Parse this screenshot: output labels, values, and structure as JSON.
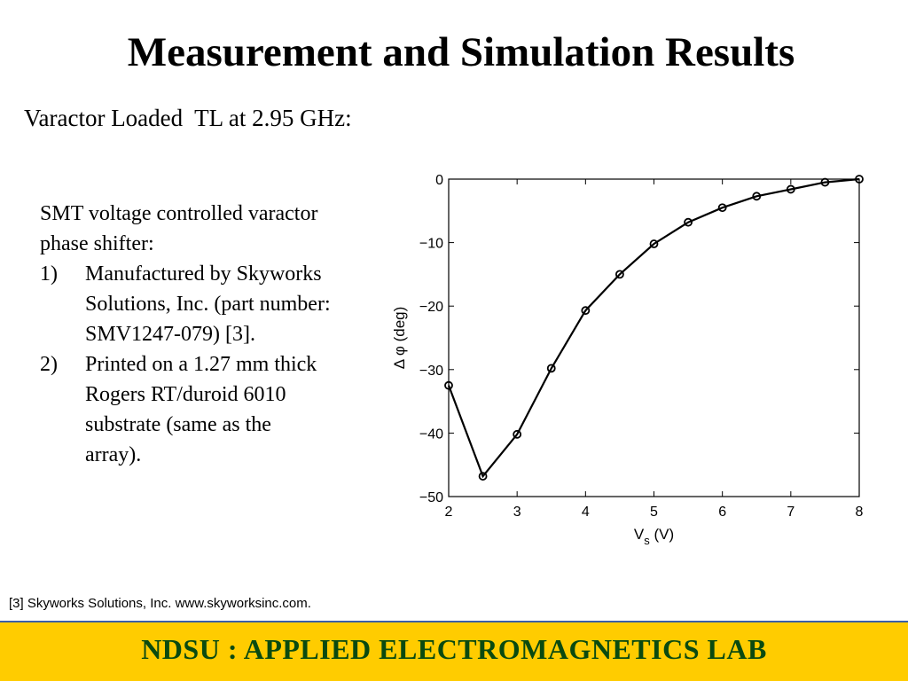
{
  "slide": {
    "title": "Measurement and Simulation Results",
    "subtitle": "Varactor Loaded  TL at 2.95 GHz:",
    "description": {
      "intro_line1": "SMT voltage controlled varactor",
      "intro_line2": "phase shifter:",
      "items": [
        {
          "num": "1)",
          "line1": "Manufactured by Skyworks",
          "line2": "Solutions, Inc. (part number:",
          "line3": "SMV1247-079) [3]."
        },
        {
          "num": "2)",
          "line1": "Printed on a 1.27 mm thick",
          "line2": "Rogers RT/duroid 6010",
          "line3": "substrate (same as the",
          "line4": "array)."
        }
      ]
    },
    "reference": "[3] Skyworks Solutions, Inc. www.skyworksinc.com.",
    "footer": "NDSU : APPLIED ELECTROMAGNETICS LAB"
  },
  "colors": {
    "footer_bg": "#ffcc00",
    "footer_text": "#0a4a10",
    "footer_border": "#3a5fa8"
  },
  "chart_data": {
    "type": "line",
    "x": [
      2,
      2.5,
      3,
      3.5,
      4,
      4.5,
      5,
      5.5,
      6,
      6.5,
      7,
      7.5,
      8
    ],
    "series": [
      {
        "values": [
          -32.5,
          -46.8,
          -40.2,
          -29.8,
          -20.7,
          -15.0,
          -10.2,
          -6.8,
          -4.5,
          -2.7,
          -1.6,
          -0.5,
          0
        ]
      }
    ],
    "xlabel_main": "V",
    "xlabel_sub": "s",
    "xlabel_unit": " (V)",
    "ylabel": "Δ φ (deg)",
    "xlim": [
      2,
      8
    ],
    "ylim": [
      -50,
      0
    ],
    "xticks": [
      2,
      3,
      4,
      5,
      6,
      7,
      8
    ],
    "yticks": [
      0,
      -10,
      -20,
      -30,
      -40,
      -50
    ],
    "ytick_labels": [
      "0",
      "−10",
      "−20",
      "−30",
      "−40",
      "−50"
    ],
    "grid": false,
    "marker": "circle"
  }
}
